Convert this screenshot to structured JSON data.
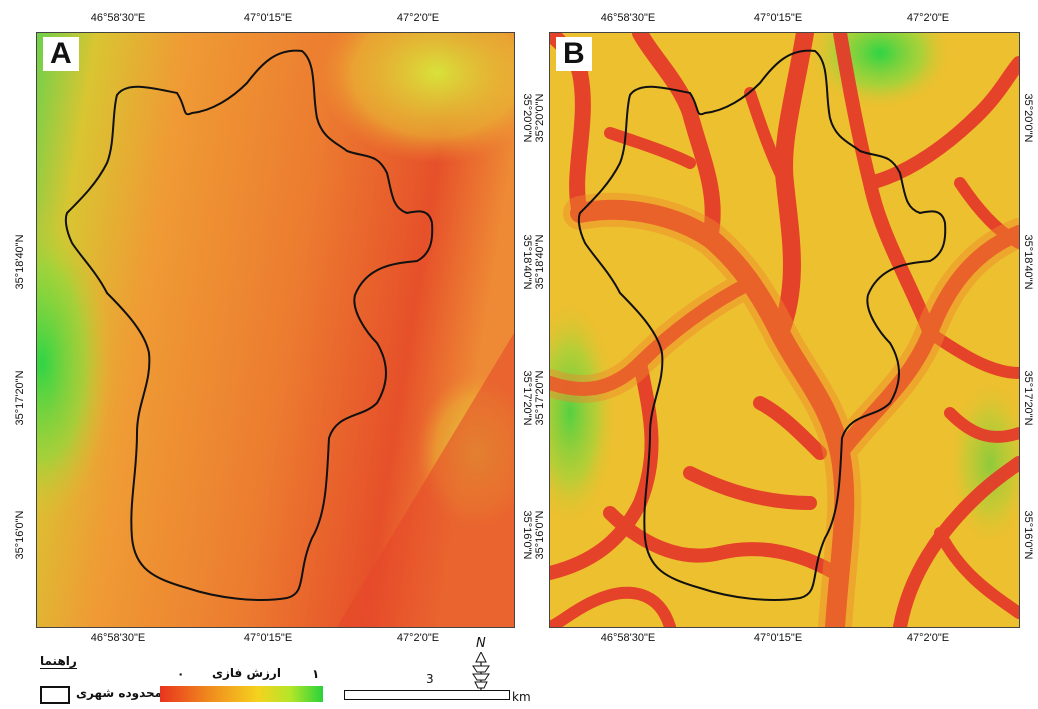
{
  "panels": [
    {
      "letter": "A",
      "top_lon_labels": [
        "46°58'30\"E",
        "47°0'15\"E",
        "47°2'0\"E"
      ],
      "bottom_lon_labels": [
        "46°58'30\"E",
        "47°0'15\"E",
        "47°2'0\"E"
      ],
      "left_lat_labels": [
        "35°16'0\"N",
        "35°17'20\"N",
        "35°18'40\"N"
      ],
      "right_lat_labels": [
        "35°20'0\"N",
        "35°18'40\"N",
        "35°17'20\"N",
        "35°16'0\"N"
      ]
    },
    {
      "letter": "B",
      "top_lon_labels": [
        "46°58'30\"E",
        "47°0'15\"E",
        "47°2'0\"E"
      ],
      "bottom_lon_labels": [
        "46°58'30\"E",
        "47°0'15\"E",
        "47°2'0\"E"
      ],
      "left_lat_labels": [
        "35°20'0\"N",
        "35°18'40\"N",
        "35°17'20\"N",
        "35°16'0\"N"
      ],
      "right_lat_labels": [
        "35°20'0\"N",
        "35°18'40\"N",
        "35°17'20\"N",
        "35°16'0\"N"
      ]
    }
  ],
  "legend": {
    "title": "راهنما",
    "boundary_label": "محدوده شهری",
    "value_title": "ارزش فازی",
    "min_label": "٠",
    "max_label": "١",
    "gradient_colors": [
      "#e8341e",
      "#f08a1e",
      "#f5d21e",
      "#b4e628",
      "#2ad23a"
    ]
  },
  "scale_bar": {
    "value": "3",
    "unit": "km"
  },
  "north_arrow": {
    "label": "N",
    "icon": "north-arrow-icon"
  },
  "colors": {
    "red": "#e53a25",
    "orange": "#ee7a2c",
    "yellow": "#f2d12a",
    "green": "#3ccf40",
    "boundary": "#111111"
  }
}
